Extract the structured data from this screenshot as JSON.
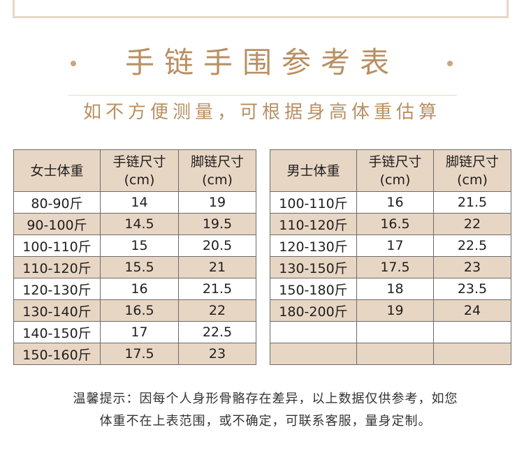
{
  "title": "手链手围参考表",
  "subtitle": "如不方便测量，可根据身高体重估算",
  "women_table": {
    "headers": [
      {
        "line1": "女士体重",
        "line2": ""
      },
      {
        "line1": "手链尺寸",
        "line2": "(cm)"
      },
      {
        "line1": "脚链尺寸",
        "line2": "(cm)"
      }
    ],
    "rows": [
      [
        "80-90斤",
        "14",
        "19"
      ],
      [
        "90-100斤",
        "14.5",
        "19.5"
      ],
      [
        "100-110斤",
        "15",
        "20.5"
      ],
      [
        "110-120斤",
        "15.5",
        "21"
      ],
      [
        "120-130斤",
        "16",
        "21.5"
      ],
      [
        "130-140斤",
        "16.5",
        "22"
      ],
      [
        "140-150斤",
        "17",
        "22.5"
      ],
      [
        "150-160斤",
        "17.5",
        "23"
      ]
    ]
  },
  "men_table": {
    "headers": [
      {
        "line1": "男士体重",
        "line2": ""
      },
      {
        "line1": "手链尺寸",
        "line2": "(cm)"
      },
      {
        "line1": "脚链尺寸",
        "line2": "(cm)"
      }
    ],
    "rows": [
      [
        "100-110斤",
        "16",
        "21.5"
      ],
      [
        "110-120斤",
        "16.5",
        "22"
      ],
      [
        "120-130斤",
        "17",
        "22.5"
      ],
      [
        "130-150斤",
        "17.5",
        "23"
      ],
      [
        "150-180斤",
        "18",
        "23.5"
      ],
      [
        "180-200斤",
        "19",
        "24"
      ],
      [
        "",
        "",
        ""
      ],
      [
        "",
        "",
        ""
      ]
    ]
  },
  "note": {
    "line1": "温馨提示：因每个人身形骨骼存在差异，以上数据仅供参考，如您",
    "line2": "体重不在上表范围，或不确定，可联系客服，量身定制。"
  },
  "colors": {
    "accent": "#b89063",
    "header_fill": "#e8d6c4",
    "border": "#6b6b6b"
  }
}
